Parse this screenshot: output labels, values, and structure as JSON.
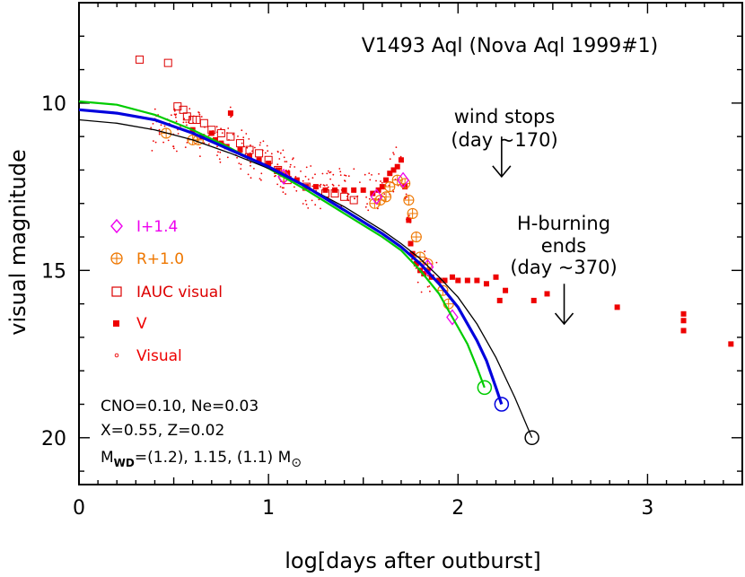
{
  "chart_data": {
    "type": "scatter",
    "title": "V1493 Aql (Nova Aql 1999#1)",
    "xlabel": "log[days after outburst]",
    "ylabel": "visual magnitude",
    "xlim": [
      0,
      3.5
    ],
    "ylim": [
      21.4,
      7.0
    ],
    "y_inverted": true,
    "x_ticks": [
      "0",
      "1",
      "2",
      "3"
    ],
    "y_ticks": [
      "10",
      "15",
      "20"
    ],
    "x_tick_values": [
      0,
      1,
      2,
      3
    ],
    "y_tick_values": [
      10,
      15,
      20
    ],
    "grid": false,
    "legend_position": "left",
    "legend": [
      {
        "label": "I+1.4",
        "marker": "diamond",
        "color": "#ee00ee"
      },
      {
        "label": "R+1.0",
        "marker": "circle-plus",
        "color": "#ee7700"
      },
      {
        "label": "IAUC visual",
        "marker": "open-square",
        "color": "#dd0000"
      },
      {
        "label": "V",
        "marker": "filled-square",
        "color": "#ee0000"
      },
      {
        "label": "Visual",
        "marker": "dot",
        "color": "#ee0000"
      }
    ],
    "annotations": {
      "wind": [
        "wind stops",
        "(day ~170)"
      ],
      "hburn": [
        "H-burning",
        "ends",
        "(day ~370)"
      ],
      "params": [
        "CNO=0.10, Ne=0.03",
        "X=0.55, Z=0.02"
      ],
      "mass": {
        "m": "M",
        "sub": "WD",
        "mid": "=(1.2), 1.15, (1.1) M",
        "sun": "⊙"
      }
    },
    "arrows": [
      {
        "x": 2.23,
        "y_from": 11.0,
        "y_to": 12.2
      },
      {
        "x": 2.56,
        "y_from": 15.4,
        "y_to": 16.6
      }
    ],
    "series": [
      {
        "name": "V",
        "marker": "filled-square",
        "color": "#ee0000",
        "x": [
          0.6,
          0.65,
          0.7,
          0.72,
          0.75,
          0.78,
          0.8,
          0.85,
          0.9,
          0.95,
          1.0,
          1.05,
          1.1,
          1.15,
          1.2,
          1.25,
          1.3,
          1.35,
          1.4,
          1.45,
          1.5,
          1.55,
          1.58,
          1.6,
          1.62,
          1.64,
          1.66,
          1.68,
          1.7,
          1.72,
          1.74,
          1.75,
          1.76,
          1.78,
          1.8,
          1.82,
          1.84,
          1.86,
          1.9,
          1.93,
          1.97,
          2.0,
          2.05,
          2.1,
          2.15,
          2.2,
          2.22,
          2.25,
          2.4,
          2.47,
          2.84,
          3.19,
          3.19,
          3.19,
          3.44
        ],
        "y": [
          10.8,
          11.0,
          10.9,
          11.1,
          11.2,
          11.3,
          10.3,
          11.4,
          11.6,
          11.7,
          11.8,
          12.0,
          12.1,
          12.3,
          12.5,
          12.5,
          12.6,
          12.6,
          12.6,
          12.6,
          12.6,
          12.7,
          12.6,
          12.5,
          12.3,
          12.1,
          12.0,
          11.9,
          11.7,
          12.5,
          13.5,
          14.2,
          14.5,
          14.8,
          15.0,
          15.1,
          15.0,
          15.2,
          15.3,
          15.3,
          15.2,
          15.3,
          15.3,
          15.3,
          15.4,
          15.2,
          15.9,
          15.6,
          15.9,
          15.7,
          16.1,
          16.3,
          16.5,
          16.8,
          17.2
        ]
      },
      {
        "name": "IAUC visual",
        "marker": "open-square",
        "color": "#dd0000",
        "x": [
          0.32,
          0.47,
          0.52,
          0.55,
          0.57,
          0.6,
          0.62,
          0.66,
          0.7,
          0.75,
          0.8,
          0.85,
          0.9,
          0.95,
          1.0,
          1.05,
          1.1,
          1.2,
          1.3,
          1.35,
          1.4,
          1.45
        ],
        "y": [
          8.7,
          8.8,
          10.1,
          10.2,
          10.4,
          10.5,
          10.5,
          10.6,
          10.8,
          10.9,
          11.0,
          11.2,
          11.4,
          11.5,
          11.7,
          12.0,
          12.3,
          12.5,
          12.7,
          12.7,
          12.8,
          12.9
        ]
      },
      {
        "name": "R+1.0",
        "marker": "circle-plus",
        "color": "#ee7700",
        "x": [
          0.46,
          0.6,
          0.63,
          1.08,
          1.56,
          1.59,
          1.62,
          1.64,
          1.68,
          1.72,
          1.74,
          1.76,
          1.78,
          1.8,
          1.84,
          1.92,
          1.95
        ],
        "y": [
          10.9,
          11.1,
          11.1,
          12.2,
          13.0,
          12.9,
          12.8,
          12.5,
          12.3,
          12.4,
          12.9,
          13.3,
          14.0,
          14.6,
          14.8,
          15.6,
          16.0
        ]
      },
      {
        "name": "I+1.4",
        "marker": "diamond",
        "color": "#ee00ee",
        "x": [
          1.08,
          1.57,
          1.71,
          1.84,
          1.97
        ],
        "y": [
          12.2,
          12.8,
          12.3,
          14.9,
          16.4
        ]
      },
      {
        "name": "Model 1.15",
        "style": "line",
        "color": "#0000dd",
        "x": [
          0.0,
          0.2,
          0.4,
          0.6,
          0.8,
          1.0,
          1.2,
          1.4,
          1.6,
          1.7,
          1.8,
          1.9,
          2.0,
          2.1,
          2.15,
          2.2,
          2.23
        ],
        "y": [
          10.2,
          10.3,
          10.5,
          10.9,
          11.4,
          11.9,
          12.5,
          13.2,
          13.9,
          14.3,
          14.8,
          15.4,
          16.1,
          17.1,
          17.7,
          18.5,
          19.0
        ],
        "end": {
          "x": 2.23,
          "y": 19.0
        }
      },
      {
        "name": "Model 1.2",
        "style": "line",
        "color": "#00cc00",
        "x": [
          0.0,
          0.2,
          0.4,
          0.6,
          0.8,
          1.0,
          1.2,
          1.4,
          1.6,
          1.7,
          1.8,
          1.9,
          1.95,
          2.0,
          2.05,
          2.1,
          2.14
        ],
        "y": [
          9.95,
          10.05,
          10.35,
          10.8,
          11.35,
          11.95,
          12.6,
          13.3,
          14.0,
          14.4,
          15.0,
          15.7,
          16.2,
          16.7,
          17.2,
          17.9,
          18.5
        ],
        "end": {
          "x": 2.14,
          "y": 18.5
        }
      },
      {
        "name": "Model 1.1",
        "style": "line",
        "color": "#000000",
        "x": [
          0.0,
          0.2,
          0.4,
          0.6,
          0.8,
          1.0,
          1.2,
          1.4,
          1.6,
          1.7,
          1.8,
          1.9,
          2.0,
          2.1,
          2.2,
          2.3,
          2.39
        ],
        "y": [
          10.5,
          10.6,
          10.8,
          11.1,
          11.5,
          11.95,
          12.5,
          13.1,
          13.8,
          14.2,
          14.65,
          15.2,
          15.8,
          16.6,
          17.6,
          18.8,
          20.0
        ],
        "end": {
          "x": 2.39,
          "y": 20.0
        }
      }
    ]
  }
}
